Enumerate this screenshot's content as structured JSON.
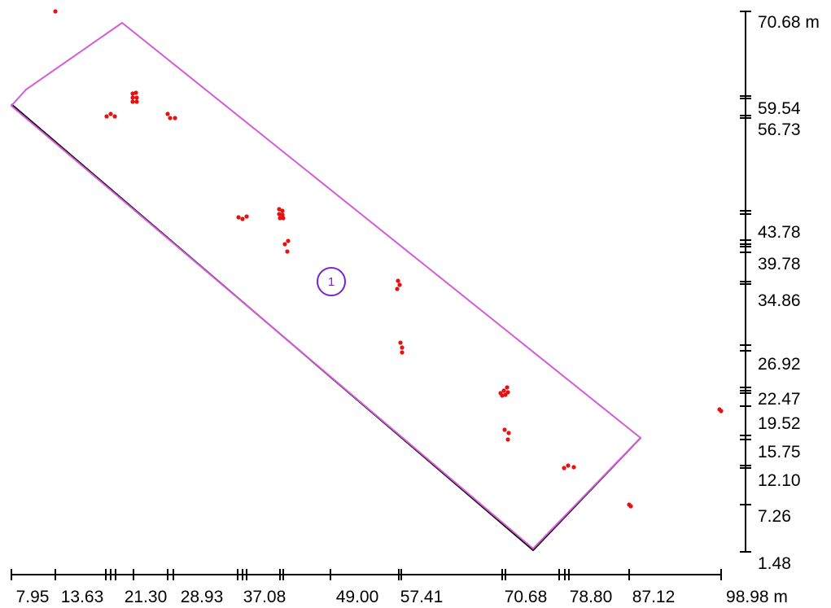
{
  "diagram": {
    "x_axis": {
      "unit": "m",
      "tick_labels": [
        "7.95",
        "13.63",
        "21.30",
        "28.93",
        "37.08",
        "49.00",
        "57.41",
        "70.68",
        "78.80",
        "87.12",
        "98.98 m"
      ]
    },
    "y_axis": {
      "unit": "m",
      "tick_labels": [
        "70.68 m",
        "59.54",
        "56.73",
        "43.78",
        "39.78",
        "34.86",
        "26.92",
        "22.47",
        "19.52",
        "15.75",
        "12.10",
        "7.26",
        "1.48"
      ]
    },
    "polygon": {
      "outline_color": "#d45cd8",
      "edge_color": "#000000"
    },
    "marker": {
      "label": "1",
      "color": "#7a22d6"
    },
    "points": {
      "color": "#e81010",
      "count": 58
    }
  }
}
